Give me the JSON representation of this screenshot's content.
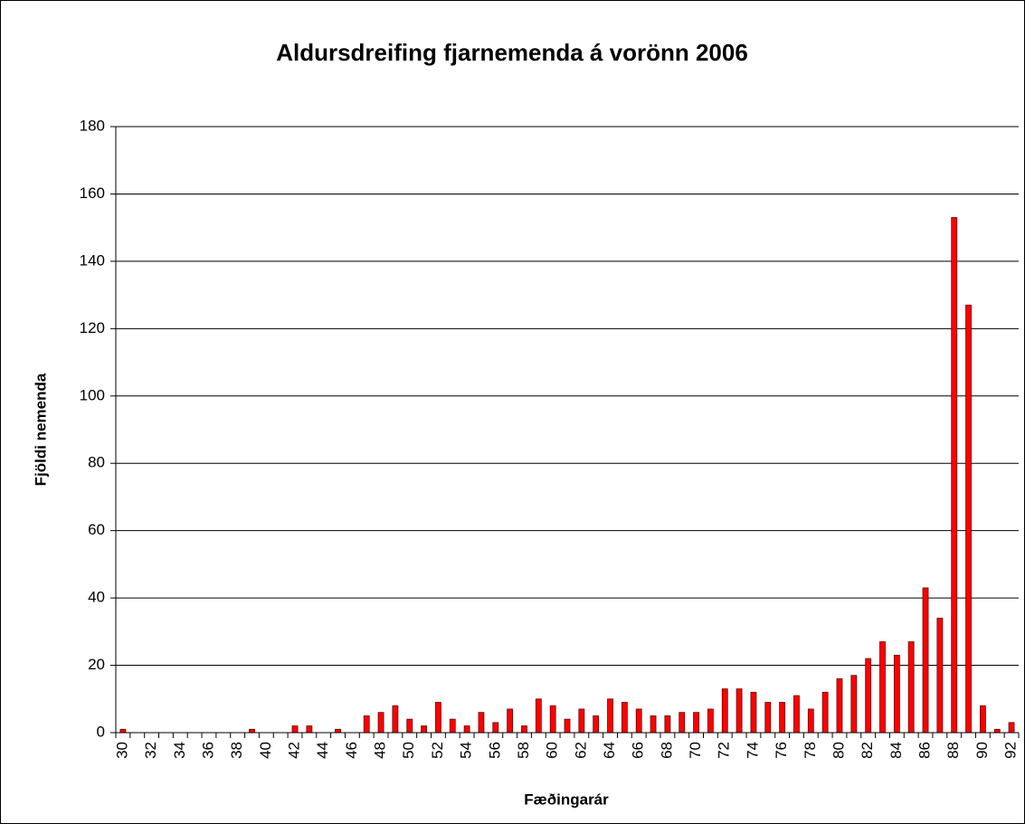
{
  "chart_data": {
    "type": "bar",
    "title": "Aldursdreifing fjarnemenda á vorönn 2006",
    "x_label": "Fæðingarár",
    "y_label": "Fjöldi nemenda",
    "categories": [
      "30",
      null,
      "32",
      null,
      "34",
      null,
      "36",
      null,
      "38",
      null,
      "40",
      null,
      "42",
      null,
      "44",
      null,
      "46",
      null,
      "48",
      null,
      "50",
      null,
      "52",
      null,
      "54",
      null,
      "56",
      null,
      "58",
      null,
      "60",
      null,
      "62",
      null,
      "64",
      null,
      "66",
      null,
      "68",
      null,
      "70",
      null,
      "72",
      null,
      "74",
      null,
      "76",
      null,
      "78",
      null,
      "80",
      null,
      "82",
      null,
      "84",
      null,
      "86",
      null,
      "88",
      null,
      "90",
      null,
      "92"
    ],
    "values": [
      1,
      0,
      0,
      0,
      0,
      0,
      0,
      0,
      0,
      1,
      0,
      0,
      2,
      2,
      0,
      1,
      0,
      5,
      6,
      8,
      4,
      2,
      9,
      4,
      2,
      6,
      3,
      7,
      2,
      10,
      8,
      4,
      7,
      5,
      10,
      9,
      7,
      5,
      5,
      6,
      6,
      7,
      13,
      13,
      12,
      9,
      9,
      11,
      7,
      12,
      16,
      17,
      22,
      27,
      23,
      27,
      43,
      34,
      153,
      127,
      8,
      1,
      3
    ],
    "color": "#ff0000",
    "ylim": [
      0,
      180
    ],
    "yticks": [
      0,
      20,
      40,
      60,
      80,
      100,
      120,
      140,
      160,
      180
    ],
    "grid": true
  }
}
